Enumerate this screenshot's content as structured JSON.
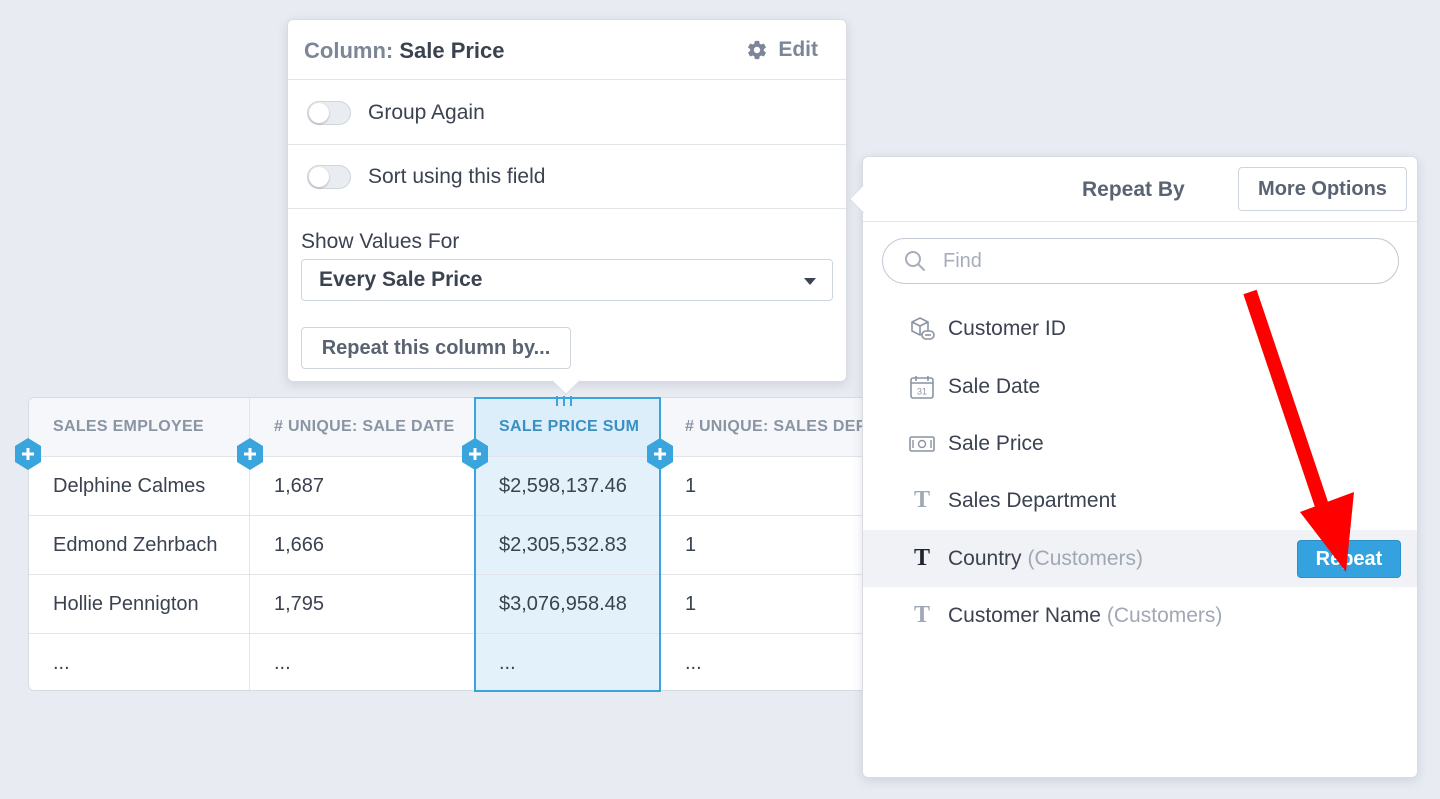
{
  "table": {
    "headers": [
      "SALES EMPLOYEE",
      "# UNIQUE: SALE DATE",
      "SALE PRICE SUM",
      "# UNIQUE: SALES DEPARTMENT"
    ],
    "rows": [
      [
        "Delphine Calmes",
        "1,687",
        "$2,598,137.46",
        "1"
      ],
      [
        "Edmond Zehrbach",
        "1,666",
        "$2,305,532.83",
        "1"
      ],
      [
        "Hollie Pennigton",
        "1,795",
        "$3,076,958.48",
        "1"
      ],
      [
        "...",
        "...",
        "...",
        "..."
      ]
    ]
  },
  "column_popover": {
    "title_key": "Column:",
    "title_value": "Sale Price",
    "edit_label": "Edit",
    "option_group_again": "Group Again",
    "option_sort": "Sort using this field",
    "show_values_label": "Show Values For",
    "show_values_selected": "Every Sale Price",
    "repeat_button": "Repeat this column by..."
  },
  "repeat_panel": {
    "title": "Repeat By",
    "more_options": "More Options",
    "find_placeholder": "Find",
    "fields": [
      {
        "label": "Customer ID",
        "sub": "",
        "icon": "link-record-icon"
      },
      {
        "label": "Sale Date",
        "sub": "",
        "icon": "calendar-icon"
      },
      {
        "label": "Sale Price",
        "sub": "",
        "icon": "currency-icon"
      },
      {
        "label": "Sales Department",
        "sub": "",
        "icon": "text-type-icon"
      },
      {
        "label": "Country",
        "sub": "(Customers)",
        "icon": "text-type-icon"
      },
      {
        "label": "Customer Name",
        "sub": "(Customers)",
        "icon": "text-type-icon"
      }
    ],
    "repeat_button": "Repeat"
  },
  "colors": {
    "accent": "#35a2e0",
    "selection": "#3aa4dc",
    "annotation_arrow": "#ff0000"
  }
}
